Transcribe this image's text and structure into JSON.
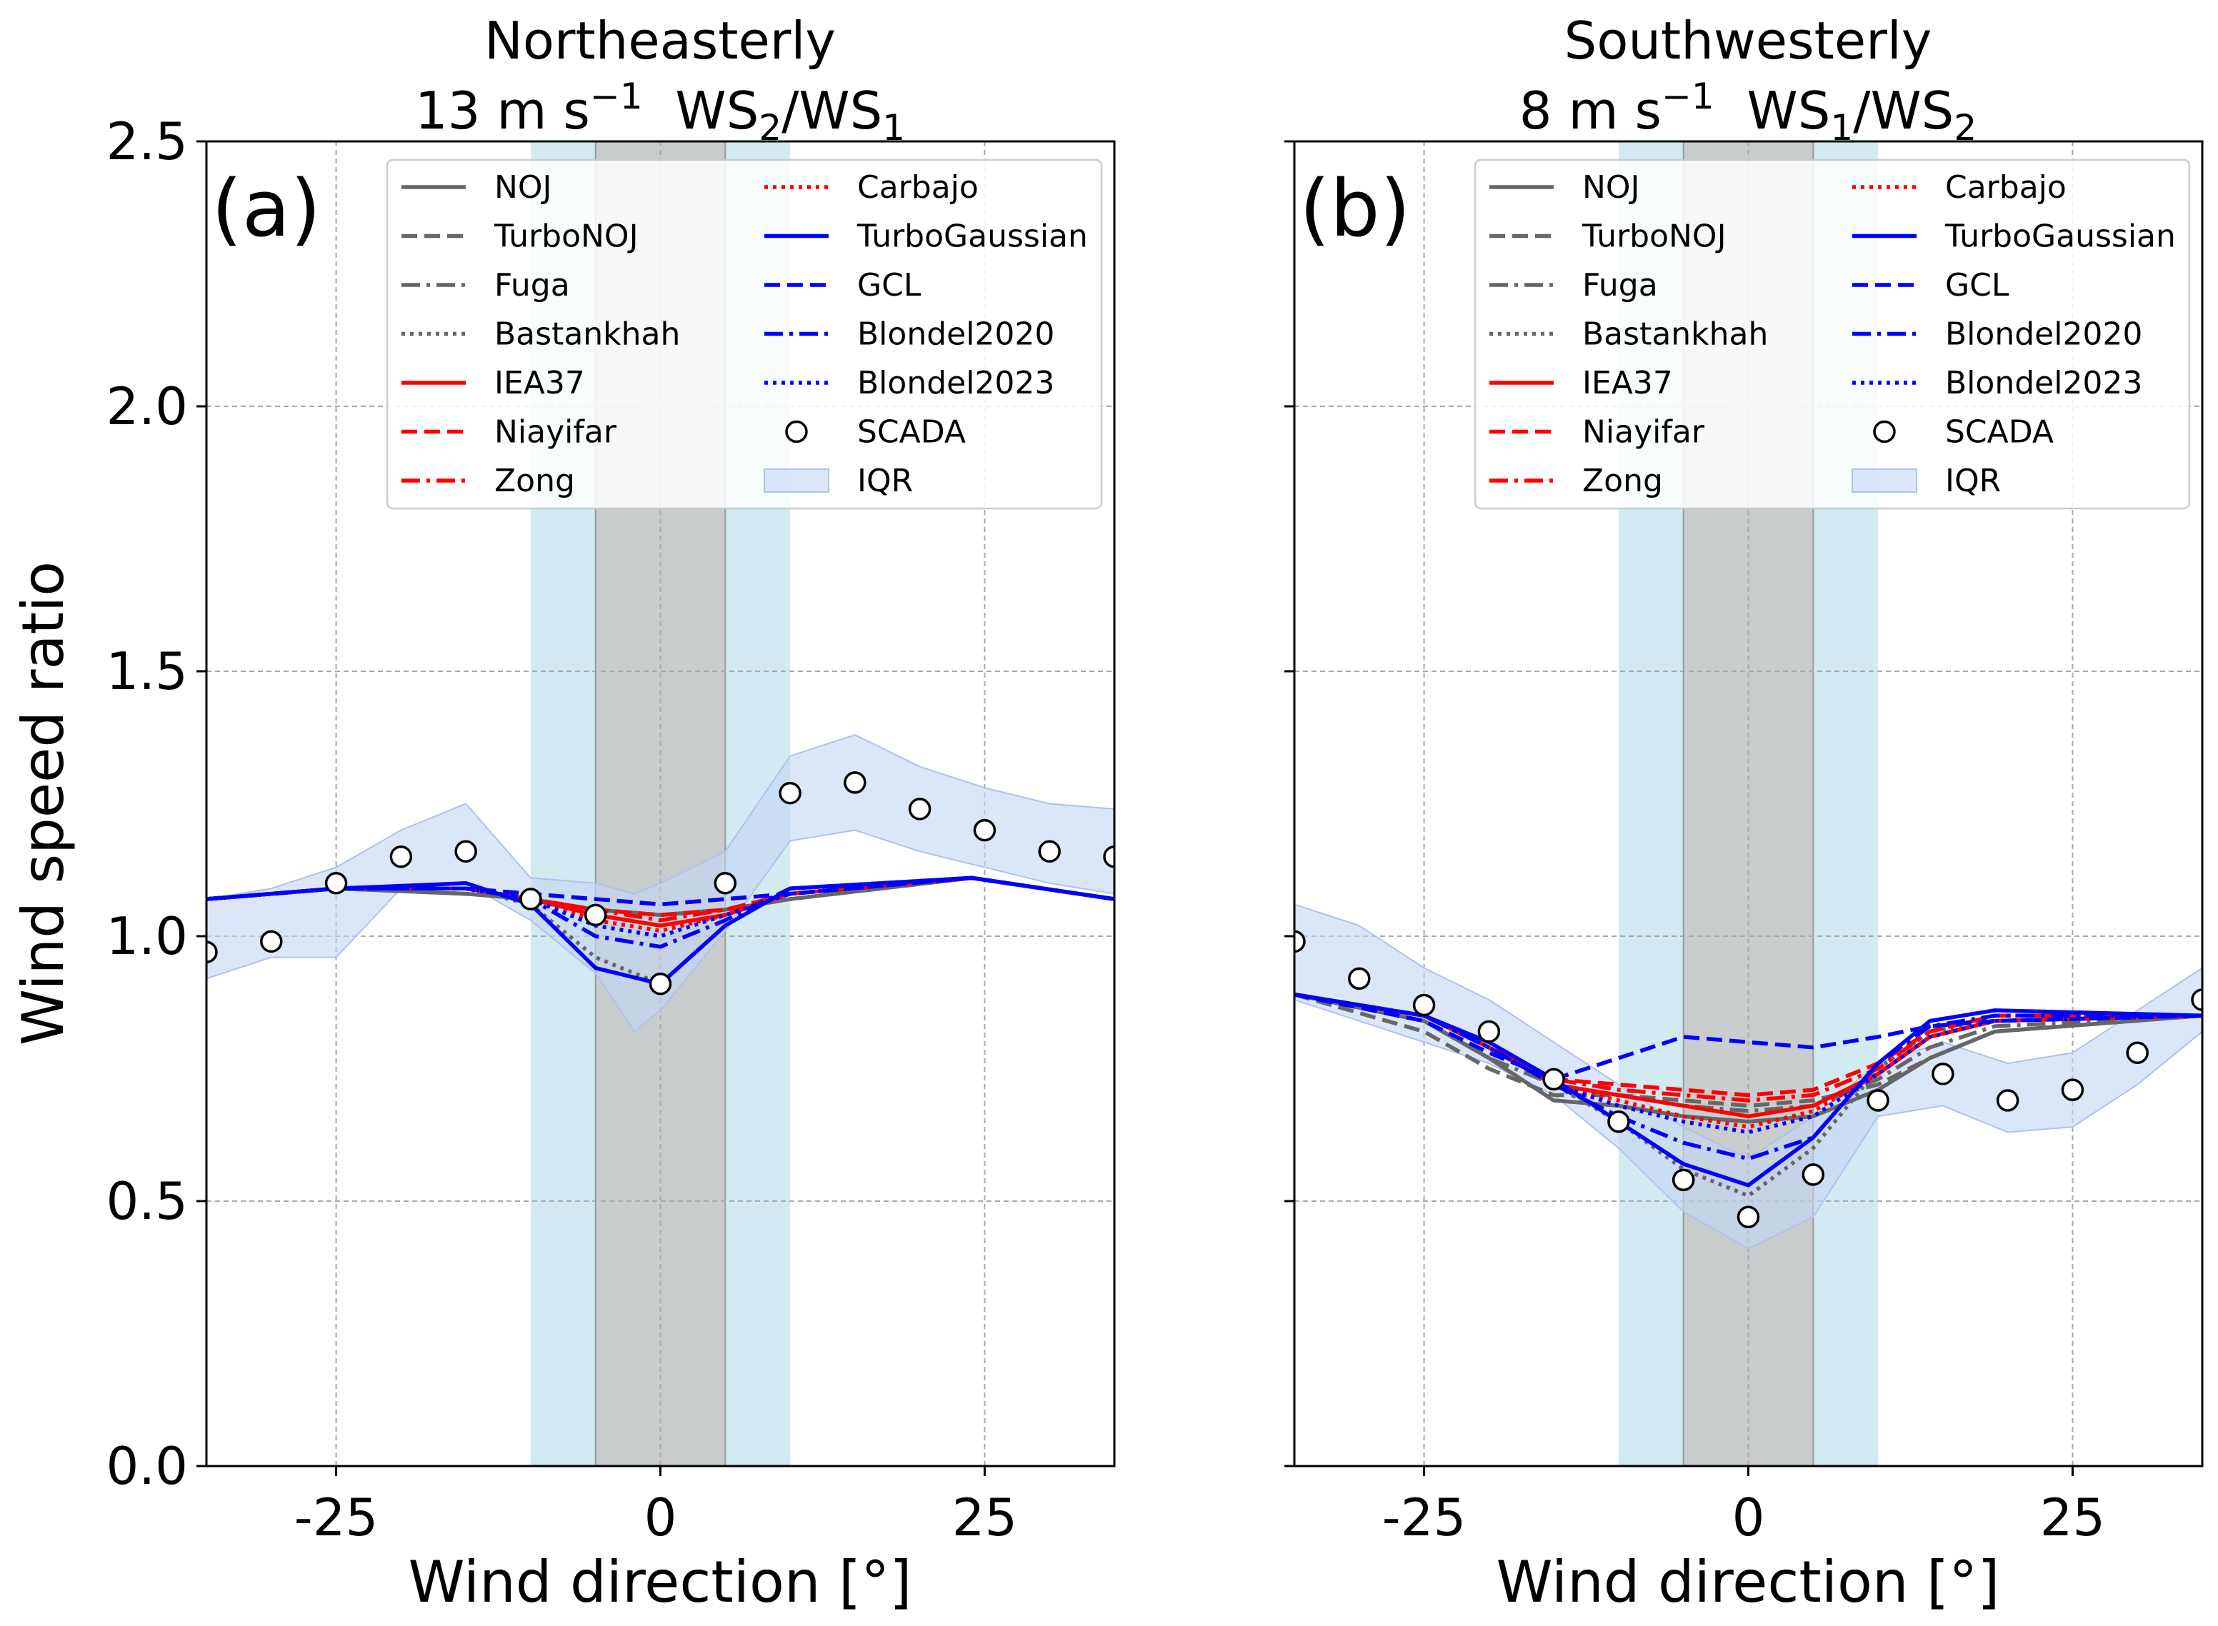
{
  "figure": {
    "ylabel": "Wind speed ratio",
    "xlabel": "Wind direction [°]"
  },
  "legend": {
    "entries": [
      {
        "name": "NOJ",
        "color": "#666666",
        "dash": "solid",
        "kind": "line"
      },
      {
        "name": "TurboNOJ",
        "color": "#666666",
        "dash": "dashed",
        "kind": "line"
      },
      {
        "name": "Fuga",
        "color": "#666666",
        "dash": "dashdot",
        "kind": "line"
      },
      {
        "name": "Bastankhah",
        "color": "#666666",
        "dash": "dotted",
        "kind": "line"
      },
      {
        "name": "IEA37",
        "color": "#ff0000",
        "dash": "solid",
        "kind": "line"
      },
      {
        "name": "Niayifar",
        "color": "#ff0000",
        "dash": "dashed",
        "kind": "line"
      },
      {
        "name": "Zong",
        "color": "#ff0000",
        "dash": "dashdot",
        "kind": "line"
      },
      {
        "name": "Carbajo",
        "color": "#ff0000",
        "dash": "dotted",
        "kind": "line"
      },
      {
        "name": "TurboGaussian",
        "color": "#0000ff",
        "dash": "solid",
        "kind": "line"
      },
      {
        "name": "GCL",
        "color": "#0000ff",
        "dash": "dashed",
        "kind": "line"
      },
      {
        "name": "Blondel2020",
        "color": "#0000ff",
        "dash": "dashdot",
        "kind": "line"
      },
      {
        "name": "Blondel2023",
        "color": "#0000ff",
        "dash": "dotted",
        "kind": "line"
      },
      {
        "name": "SCADA",
        "kind": "marker"
      },
      {
        "name": "IQR",
        "kind": "patch",
        "color": "#c5d5f5"
      }
    ]
  },
  "colors": {
    "gray": "#666666",
    "red": "#ff0000",
    "blue": "#0000ff",
    "iqr": "#c5d5f5",
    "cyan_band": "#add8e6",
    "gray_band": "#c8c8c8"
  },
  "chart_data": [
    {
      "type": "line",
      "panel_label": "(a)",
      "title_line1": "Northeasterly",
      "title_speed": "13 m s",
      "title_exp": "−1",
      "title_ratio": [
        {
          "t": "WS",
          "s": "2"
        },
        {
          "t": "/WS",
          "s": "1"
        }
      ],
      "xlim": [
        -35,
        35
      ],
      "ylim": [
        0,
        2.5
      ],
      "xticks": [
        -25,
        0,
        25
      ],
      "xtick_labels": [
        "-25",
        "0",
        "25"
      ],
      "yticks": [
        0,
        0.5,
        1.0,
        1.5,
        2.0,
        2.5
      ],
      "ytick_labels": [
        "0.0",
        "0.5",
        "1.0",
        "1.5",
        "2.0",
        "2.5"
      ],
      "shaded_bands": [
        {
          "from": -10,
          "to": 10,
          "color": "#add8e6"
        },
        {
          "from": -5,
          "to": 5,
          "color": "#c8c8c8"
        }
      ],
      "iqr": {
        "x": [
          -35,
          -30,
          -25,
          -20,
          -15,
          -10,
          -5,
          -2,
          0,
          5,
          10,
          15,
          20,
          25,
          30,
          35
        ],
        "lower": [
          0.92,
          0.96,
          0.96,
          1.09,
          1.1,
          1.03,
          0.93,
          0.82,
          0.86,
          1.01,
          1.18,
          1.2,
          1.16,
          1.13,
          1.1,
          1.08
        ],
        "upper": [
          1.07,
          1.09,
          1.13,
          1.2,
          1.25,
          1.11,
          1.1,
          1.08,
          1.1,
          1.16,
          1.34,
          1.38,
          1.32,
          1.28,
          1.25,
          1.24
        ]
      },
      "series": [
        {
          "name": "NOJ",
          "x": [
            -35,
            -25,
            -15,
            -10,
            -5,
            0,
            5,
            10,
            24,
            35
          ],
          "y": [
            1.07,
            1.09,
            1.08,
            1.07,
            1.05,
            1.04,
            1.05,
            1.07,
            1.11,
            1.07
          ]
        },
        {
          "name": "TurboNOJ",
          "x": [
            -35,
            -25,
            -15,
            -10,
            -5,
            0,
            5,
            10,
            24,
            35
          ],
          "y": [
            1.07,
            1.09,
            1.09,
            1.08,
            1.07,
            1.06,
            1.07,
            1.08,
            1.11,
            1.07
          ]
        },
        {
          "name": "Fuga",
          "x": [
            -35,
            -25,
            -15,
            -10,
            -5,
            0,
            5,
            10,
            24,
            35
          ],
          "y": [
            1.07,
            1.09,
            1.08,
            1.07,
            1.05,
            1.04,
            1.05,
            1.07,
            1.11,
            1.07
          ]
        },
        {
          "name": "Bastankhah",
          "x": [
            -35,
            -25,
            -15,
            -10,
            -5,
            0,
            5,
            10,
            24,
            35
          ],
          "y": [
            1.07,
            1.09,
            1.09,
            1.06,
            0.96,
            0.91,
            1.02,
            1.09,
            1.11,
            1.07
          ]
        },
        {
          "name": "IEA37",
          "x": [
            -35,
            -25,
            -15,
            -10,
            -5,
            0,
            5,
            10,
            24,
            35
          ],
          "y": [
            1.07,
            1.09,
            1.09,
            1.07,
            1.04,
            1.02,
            1.04,
            1.08,
            1.11,
            1.07
          ]
        },
        {
          "name": "Niayifar",
          "x": [
            -35,
            -25,
            -15,
            -10,
            -5,
            0,
            5,
            10,
            24,
            35
          ],
          "y": [
            1.07,
            1.09,
            1.09,
            1.07,
            1.05,
            1.04,
            1.05,
            1.08,
            1.11,
            1.07
          ]
        },
        {
          "name": "Zong",
          "x": [
            -35,
            -25,
            -15,
            -10,
            -5,
            0,
            5,
            10,
            24,
            35
          ],
          "y": [
            1.07,
            1.09,
            1.09,
            1.07,
            1.05,
            1.03,
            1.05,
            1.08,
            1.11,
            1.07
          ]
        },
        {
          "name": "Carbajo",
          "x": [
            -35,
            -25,
            -15,
            -10,
            -5,
            0,
            5,
            10,
            24,
            35
          ],
          "y": [
            1.07,
            1.09,
            1.09,
            1.07,
            1.03,
            1.01,
            1.04,
            1.08,
            1.11,
            1.07
          ]
        },
        {
          "name": "TurboGaussian",
          "x": [
            -35,
            -25,
            -15,
            -10,
            -5,
            0,
            5,
            10,
            24,
            35
          ],
          "y": [
            1.07,
            1.09,
            1.1,
            1.06,
            0.94,
            0.91,
            1.02,
            1.09,
            1.11,
            1.07
          ]
        },
        {
          "name": "GCL",
          "x": [
            -35,
            -25,
            -15,
            -10,
            -5,
            0,
            5,
            10,
            24,
            35
          ],
          "y": [
            1.07,
            1.09,
            1.09,
            1.08,
            1.07,
            1.06,
            1.07,
            1.08,
            1.11,
            1.07
          ]
        },
        {
          "name": "Blondel2020",
          "x": [
            -35,
            -25,
            -15,
            -10,
            -5,
            0,
            5,
            10,
            24,
            35
          ],
          "y": [
            1.07,
            1.09,
            1.09,
            1.07,
            1.0,
            0.98,
            1.03,
            1.09,
            1.11,
            1.07
          ]
        },
        {
          "name": "Blondel2023",
          "x": [
            -35,
            -25,
            -15,
            -10,
            -5,
            0,
            5,
            10,
            24,
            35
          ],
          "y": [
            1.07,
            1.09,
            1.09,
            1.07,
            1.02,
            1.0,
            1.04,
            1.08,
            1.11,
            1.07
          ]
        }
      ],
      "scada": {
        "x": [
          -35,
          -30,
          -25,
          -20,
          -15,
          -10,
          -5,
          0,
          5,
          10,
          15,
          20,
          25,
          30,
          35
        ],
        "y": [
          0.97,
          0.99,
          1.1,
          1.15,
          1.16,
          1.07,
          1.04,
          0.91,
          1.1,
          1.27,
          1.29,
          1.24,
          1.2,
          1.16,
          1.15
        ]
      }
    },
    {
      "type": "line",
      "panel_label": "(b)",
      "title_line1": "Southwesterly",
      "title_speed": "8 m s",
      "title_exp": "−1",
      "title_ratio": [
        {
          "t": "WS",
          "s": "1"
        },
        {
          "t": "/WS",
          "s": "2"
        }
      ],
      "xlim": [
        -35,
        35
      ],
      "ylim": [
        0,
        2.5
      ],
      "xticks": [
        -25,
        0,
        25
      ],
      "xtick_labels": [
        "-25",
        "0",
        "25"
      ],
      "yticks": [
        0,
        0.5,
        1.0,
        1.5,
        2.0,
        2.5
      ],
      "ytick_labels": [],
      "shaded_bands": [
        {
          "from": -10,
          "to": 10,
          "color": "#add8e6"
        },
        {
          "from": -5,
          "to": 5,
          "color": "#c8c8c8"
        }
      ],
      "iqr": {
        "x": [
          -35,
          -30,
          -25,
          -20,
          -15,
          -10,
          -5,
          0,
          5,
          10,
          15,
          20,
          25,
          30,
          35
        ],
        "lower": [
          0.88,
          0.84,
          0.8,
          0.76,
          0.7,
          0.6,
          0.48,
          0.41,
          0.47,
          0.66,
          0.68,
          0.63,
          0.64,
          0.72,
          0.82
        ],
        "upper": [
          1.06,
          1.02,
          0.94,
          0.88,
          0.8,
          0.72,
          0.64,
          0.58,
          0.66,
          0.76,
          0.8,
          0.76,
          0.78,
          0.86,
          0.94
        ]
      },
      "series": [
        {
          "name": "NOJ",
          "x": [
            -35,
            -25,
            -20,
            -15,
            -10,
            -5,
            0,
            5,
            10,
            14,
            19,
            35
          ],
          "y": [
            0.89,
            0.84,
            0.77,
            0.69,
            0.68,
            0.66,
            0.65,
            0.66,
            0.71,
            0.77,
            0.82,
            0.85
          ]
        },
        {
          "name": "TurboNOJ",
          "x": [
            -35,
            -25,
            -20,
            -15,
            -10,
            -5,
            0,
            5,
            10,
            14,
            19,
            35
          ],
          "y": [
            0.89,
            0.82,
            0.75,
            0.7,
            0.7,
            0.69,
            0.68,
            0.69,
            0.72,
            0.77,
            0.82,
            0.85
          ]
        },
        {
          "name": "Fuga",
          "x": [
            -35,
            -25,
            -20,
            -15,
            -10,
            -5,
            0,
            5,
            10,
            14,
            19,
            35
          ],
          "y": [
            0.89,
            0.84,
            0.77,
            0.72,
            0.7,
            0.68,
            0.67,
            0.68,
            0.73,
            0.79,
            0.83,
            0.85
          ]
        },
        {
          "name": "Bastankhah",
          "x": [
            -35,
            -25,
            -20,
            -15,
            -10,
            -5,
            0,
            5,
            10,
            14,
            19,
            35
          ],
          "y": [
            0.89,
            0.85,
            0.79,
            0.72,
            0.65,
            0.56,
            0.51,
            0.6,
            0.75,
            0.82,
            0.84,
            0.85
          ]
        },
        {
          "name": "IEA37",
          "x": [
            -35,
            -25,
            -20,
            -15,
            -10,
            -5,
            0,
            5,
            10,
            14,
            19,
            35
          ],
          "y": [
            0.89,
            0.85,
            0.79,
            0.72,
            0.7,
            0.68,
            0.66,
            0.68,
            0.74,
            0.81,
            0.84,
            0.85
          ]
        },
        {
          "name": "Niayifar",
          "x": [
            -35,
            -25,
            -20,
            -15,
            -10,
            -5,
            0,
            5,
            10,
            14,
            19,
            35
          ],
          "y": [
            0.89,
            0.85,
            0.79,
            0.73,
            0.72,
            0.71,
            0.7,
            0.71,
            0.76,
            0.82,
            0.85,
            0.85
          ]
        },
        {
          "name": "Zong",
          "x": [
            -35,
            -25,
            -20,
            -15,
            -10,
            -5,
            0,
            5,
            10,
            14,
            19,
            35
          ],
          "y": [
            0.89,
            0.85,
            0.79,
            0.73,
            0.71,
            0.7,
            0.69,
            0.7,
            0.75,
            0.82,
            0.85,
            0.85
          ]
        },
        {
          "name": "Carbajo",
          "x": [
            -35,
            -25,
            -20,
            -15,
            -10,
            -5,
            0,
            5,
            10,
            14,
            19,
            35
          ],
          "y": [
            0.89,
            0.85,
            0.79,
            0.72,
            0.69,
            0.66,
            0.64,
            0.67,
            0.74,
            0.81,
            0.84,
            0.85
          ]
        },
        {
          "name": "TurboGaussian",
          "x": [
            -35,
            -25,
            -20,
            -15,
            -10,
            -5,
            0,
            5,
            10,
            14,
            19,
            35
          ],
          "y": [
            0.89,
            0.85,
            0.8,
            0.73,
            0.65,
            0.57,
            0.53,
            0.62,
            0.76,
            0.84,
            0.86,
            0.85
          ]
        },
        {
          "name": "GCL",
          "x": [
            -35,
            -25,
            -20,
            -15,
            -10,
            -5,
            0,
            5,
            10,
            14,
            19,
            35
          ],
          "y": [
            0.89,
            0.84,
            0.78,
            0.73,
            0.77,
            0.81,
            0.8,
            0.79,
            0.81,
            0.83,
            0.84,
            0.85
          ]
        },
        {
          "name": "Blondel2020",
          "x": [
            -35,
            -25,
            -20,
            -15,
            -10,
            -5,
            0,
            5,
            10,
            14,
            19,
            35
          ],
          "y": [
            0.89,
            0.85,
            0.79,
            0.72,
            0.66,
            0.61,
            0.58,
            0.62,
            0.76,
            0.83,
            0.85,
            0.85
          ]
        },
        {
          "name": "Blondel2023",
          "x": [
            -35,
            -25,
            -20,
            -15,
            -10,
            -5,
            0,
            5,
            10,
            14,
            19,
            35
          ],
          "y": [
            0.89,
            0.85,
            0.79,
            0.72,
            0.68,
            0.65,
            0.63,
            0.66,
            0.74,
            0.81,
            0.84,
            0.85
          ]
        }
      ],
      "scada": {
        "x": [
          -35,
          -30,
          -25,
          -20,
          -15,
          -10,
          -5,
          0,
          5,
          10,
          15,
          20,
          25,
          30,
          35
        ],
        "y": [
          0.99,
          0.92,
          0.87,
          0.82,
          0.73,
          0.65,
          0.54,
          0.47,
          0.55,
          0.69,
          0.74,
          0.69,
          0.71,
          0.78,
          0.88
        ]
      }
    }
  ]
}
